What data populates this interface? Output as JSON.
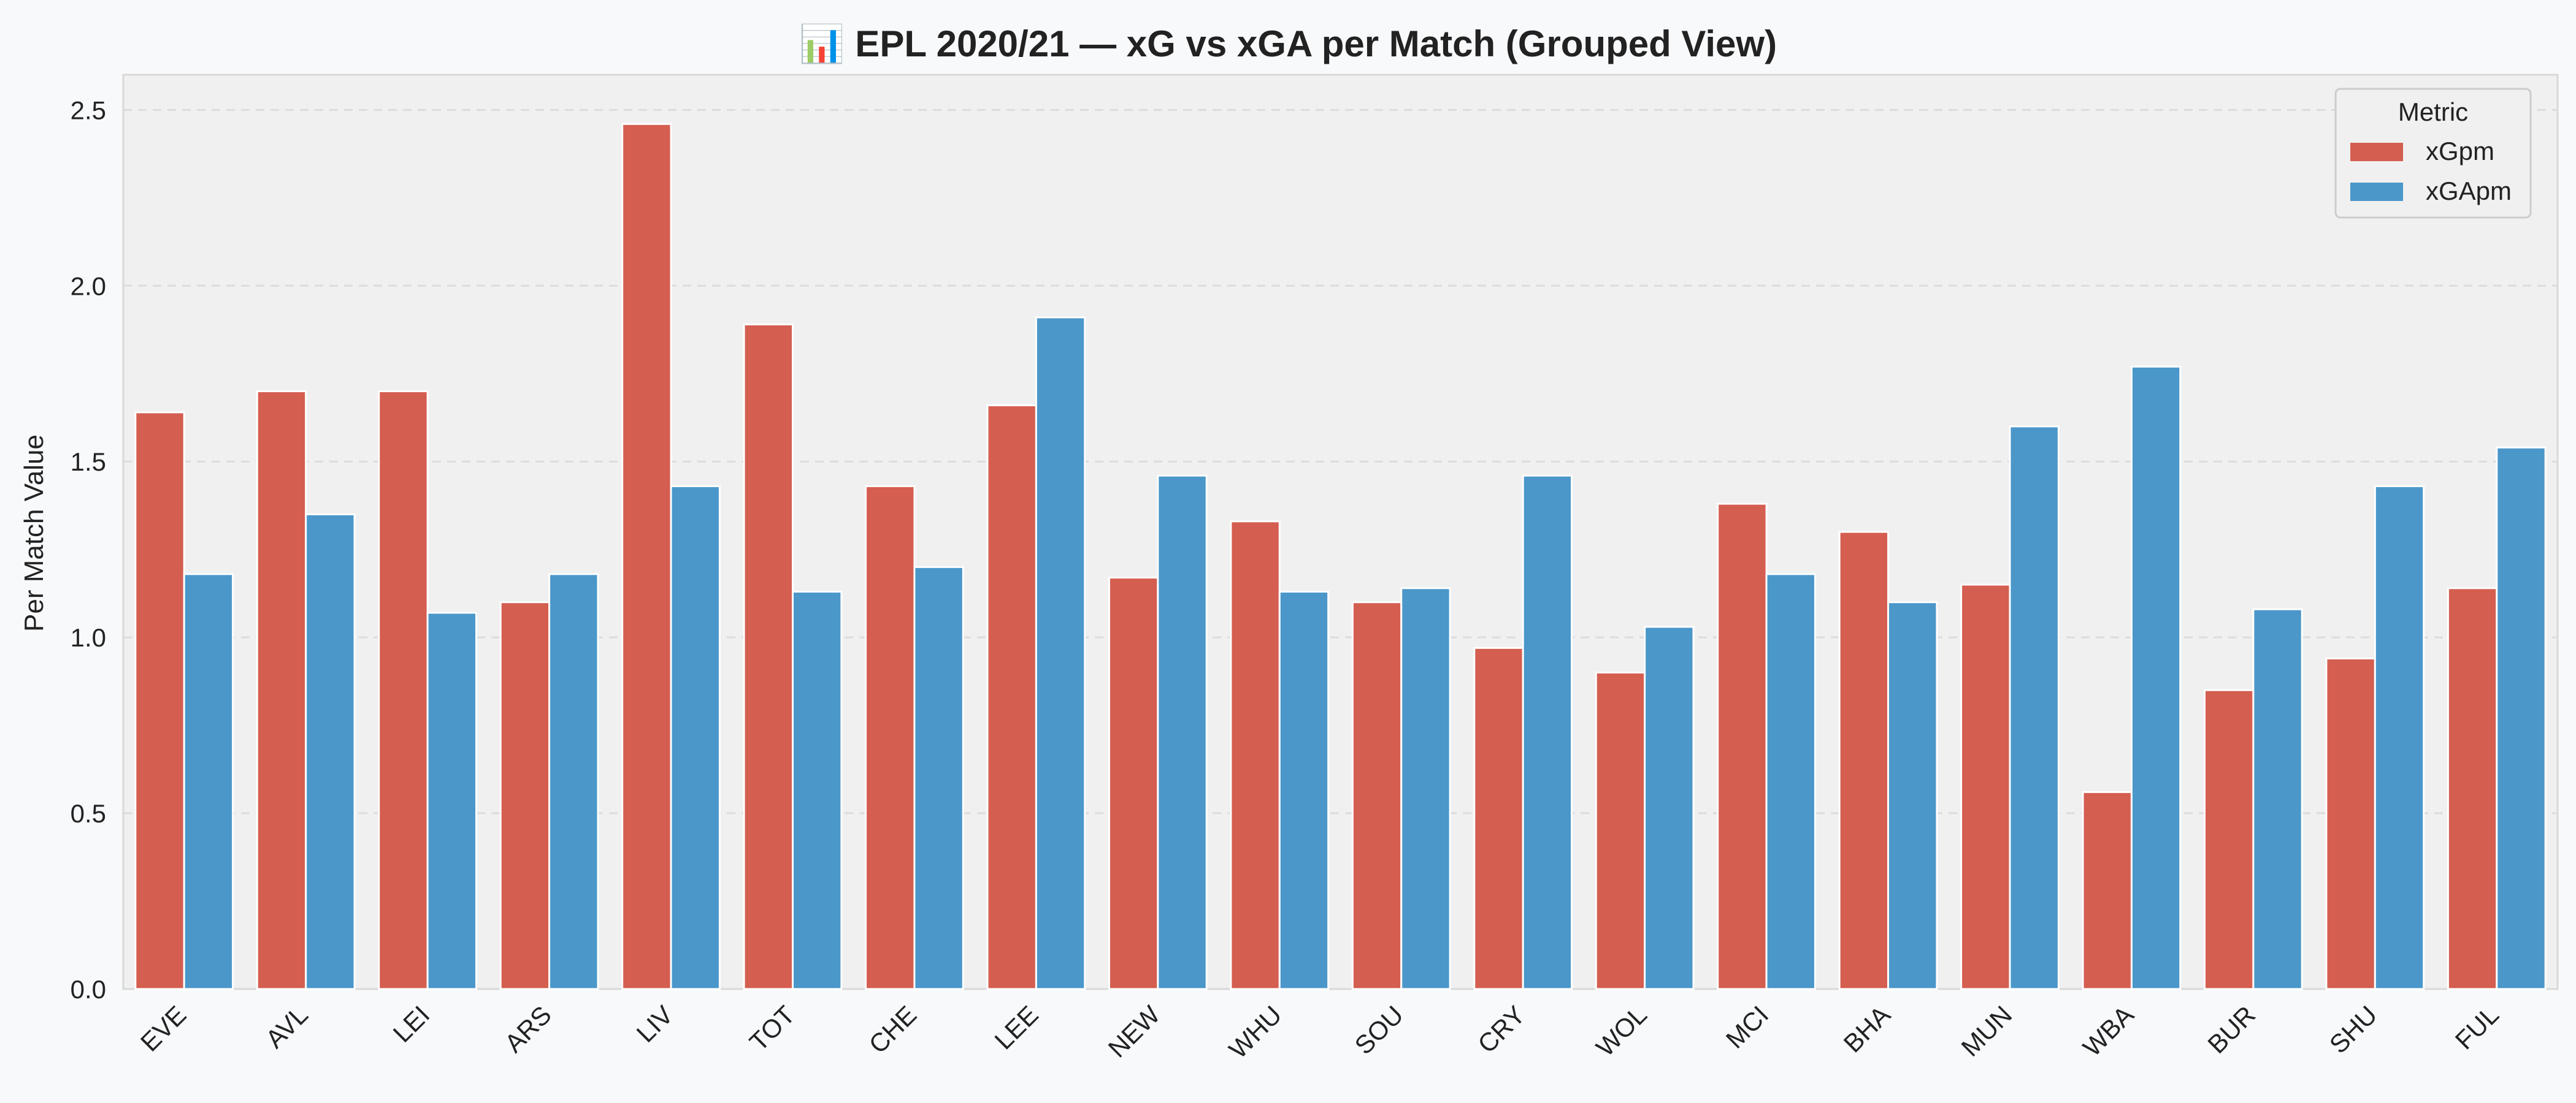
{
  "chart_data": {
    "type": "bar",
    "title": "📊 EPL 2020/21 — xG vs xGA per Match (Grouped View)",
    "xlabel": "",
    "ylabel": "Per Match Value",
    "ylim": [
      0,
      2.6
    ],
    "yticks": [
      "0.0",
      "0.5",
      "1.0",
      "1.5",
      "2.0",
      "2.5"
    ],
    "grid": true,
    "legend_title": "Metric",
    "legend_position": "top-right",
    "categories": [
      "EVE",
      "AVL",
      "LEI",
      "ARS",
      "LIV",
      "TOT",
      "CHE",
      "LEE",
      "NEW",
      "WHU",
      "SOU",
      "CRY",
      "WOL",
      "MCI",
      "BHA",
      "MUN",
      "WBA",
      "BUR",
      "SHU",
      "FUL"
    ],
    "series": [
      {
        "name": "xGpm",
        "color": "#d45e50",
        "values": [
          1.64,
          1.7,
          1.7,
          1.1,
          2.46,
          1.89,
          1.43,
          1.66,
          1.17,
          1.33,
          1.1,
          0.97,
          0.9,
          1.38,
          1.3,
          1.15,
          0.56,
          0.85,
          0.94,
          1.14
        ]
      },
      {
        "name": "xGApm",
        "color": "#4b97ca",
        "values": [
          1.18,
          1.35,
          1.07,
          1.18,
          1.43,
          1.13,
          1.2,
          1.91,
          1.46,
          1.13,
          1.14,
          1.46,
          1.03,
          1.18,
          1.1,
          1.6,
          1.77,
          1.08,
          1.43,
          1.54
        ]
      }
    ]
  }
}
